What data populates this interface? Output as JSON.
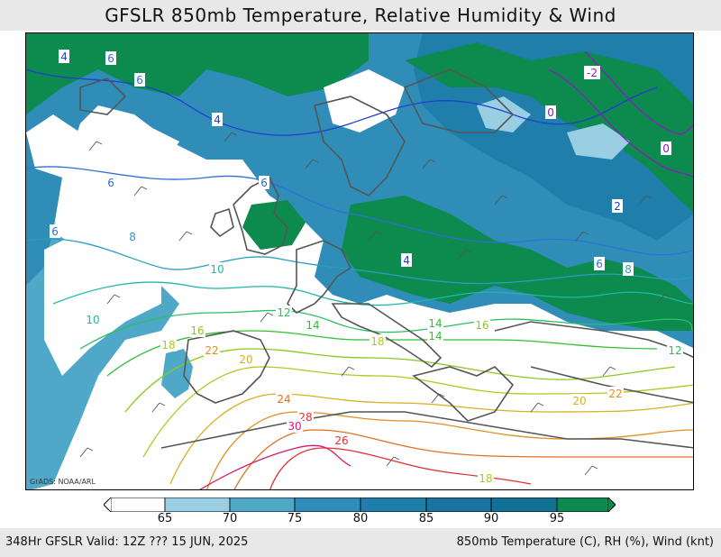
{
  "title": "GFSLR 850mb Temperature, Relative Humidity & Wind",
  "footer": {
    "left": "348Hr GFSLR Valid: 12Z ??? 15 JUN, 2025",
    "right": "850mb Temperature (C), RH (%), Wind (knt)"
  },
  "credit": "GrADS: NOAA/ARL",
  "colorbar": {
    "ticks": [
      "65",
      "70",
      "75",
      "80",
      "85",
      "90",
      "95"
    ],
    "colors": [
      "#ffffff",
      "#99cee3",
      "#4fa8c8",
      "#2f8db8",
      "#1f7eaa",
      "#19739e",
      "#137096",
      "#0d8a4e"
    ]
  },
  "contour_labels": [
    {
      "text": "4",
      "color": "#1f3fd0"
    },
    {
      "text": "6",
      "color": "#2f6fd8"
    },
    {
      "text": "6",
      "color": "#2f6fd8"
    },
    {
      "text": "4",
      "color": "#1f3fd0"
    },
    {
      "text": "6",
      "color": "#2f6fd8"
    },
    {
      "text": "6",
      "color": "#2f6fd8"
    },
    {
      "text": "6",
      "color": "#2f6fd8"
    },
    {
      "text": "8",
      "color": "#25a0c0"
    },
    {
      "text": "10",
      "color": "#1fb8a8"
    },
    {
      "text": "10",
      "color": "#1fb8a8"
    },
    {
      "text": "12",
      "color": "#28c060"
    },
    {
      "text": "14",
      "color": "#30c030"
    },
    {
      "text": "16",
      "color": "#8cc820"
    },
    {
      "text": "18",
      "color": "#b0c820"
    },
    {
      "text": "20",
      "color": "#d8b020"
    },
    {
      "text": "22",
      "color": "#e09020"
    },
    {
      "text": "24",
      "color": "#e07020"
    },
    {
      "text": "28",
      "color": "#e03030"
    },
    {
      "text": "30",
      "color": "#d81870"
    },
    {
      "text": "4",
      "color": "#1f3fd0"
    },
    {
      "text": "2",
      "color": "#1f3fd0"
    },
    {
      "text": "0",
      "color": "#8a1cc0"
    },
    {
      "text": "0",
      "color": "#8a1cc0"
    },
    {
      "text": "-2",
      "color": "#8a1cc0"
    },
    {
      "text": "6",
      "color": "#2f6fd8"
    },
    {
      "text": "8",
      "color": "#25a0c0"
    },
    {
      "text": "14",
      "color": "#30c030"
    },
    {
      "text": "14",
      "color": "#30c030"
    },
    {
      "text": "16",
      "color": "#8cc820"
    },
    {
      "text": "18",
      "color": "#b0c820"
    },
    {
      "text": "20",
      "color": "#d8b020"
    },
    {
      "text": "22",
      "color": "#e09020"
    },
    {
      "text": "12",
      "color": "#28c060"
    },
    {
      "text": "18",
      "color": "#b0c820"
    },
    {
      "text": "26",
      "color": "#e03030"
    }
  ]
}
